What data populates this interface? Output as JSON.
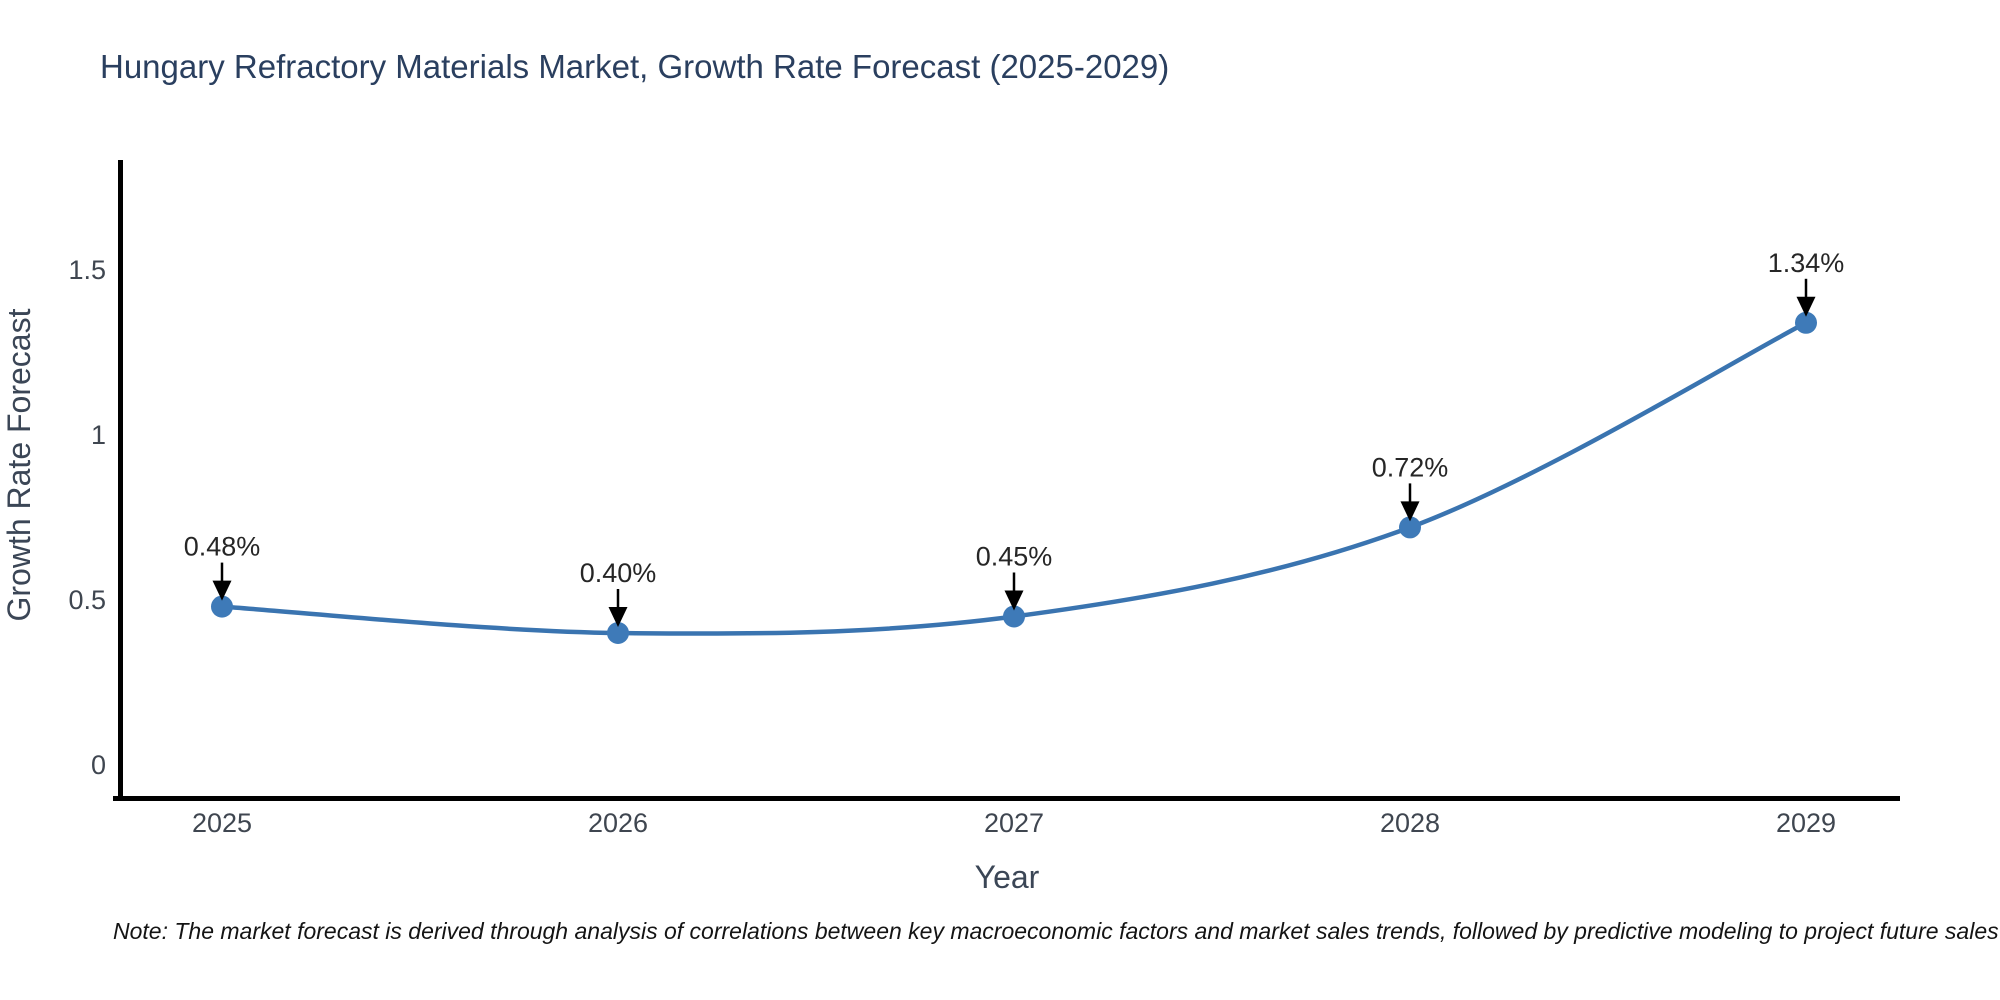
{
  "title": "Hungary Refractory Materials Market, Growth Rate Forecast (2025-2029)",
  "note": "Note: The market forecast is derived through analysis of correlations between key macroeconomic factors and market sales trends, followed by predictive modeling to project future sales",
  "chart_data": {
    "type": "line",
    "title": "Hungary Refractory Materials Market, Growth Rate Forecast (2025-2029)",
    "x": [
      "2025",
      "2026",
      "2027",
      "2028",
      "2029"
    ],
    "series": [
      {
        "name": "Growth Rate Forecast",
        "values": [
          0.48,
          0.4,
          0.45,
          0.72,
          1.34
        ]
      }
    ],
    "point_labels": [
      "0.48%",
      "0.40%",
      "0.45%",
      "0.72%",
      "1.34%"
    ],
    "xlabel": "Year",
    "ylabel": "Growth Rate Forecast",
    "yticks": [
      0,
      0.5,
      1,
      1.5
    ],
    "ytick_labels": [
      "0",
      "0.5",
      "1",
      "1.5"
    ],
    "ylim": [
      -0.1,
      1.84
    ],
    "grid": false,
    "legend": "none",
    "line_shape": "spline",
    "annotation_style": "black-down-arrow",
    "colors": {
      "line": "#3a74b0",
      "marker": "#3e7ab8",
      "annotation_text": "#262626",
      "annotation_arrow": "#000000",
      "spine": "#000000",
      "tick_text": "#3f4650",
      "axis_title_text": "#3b4656",
      "title_text": "#2a3f5f"
    }
  }
}
